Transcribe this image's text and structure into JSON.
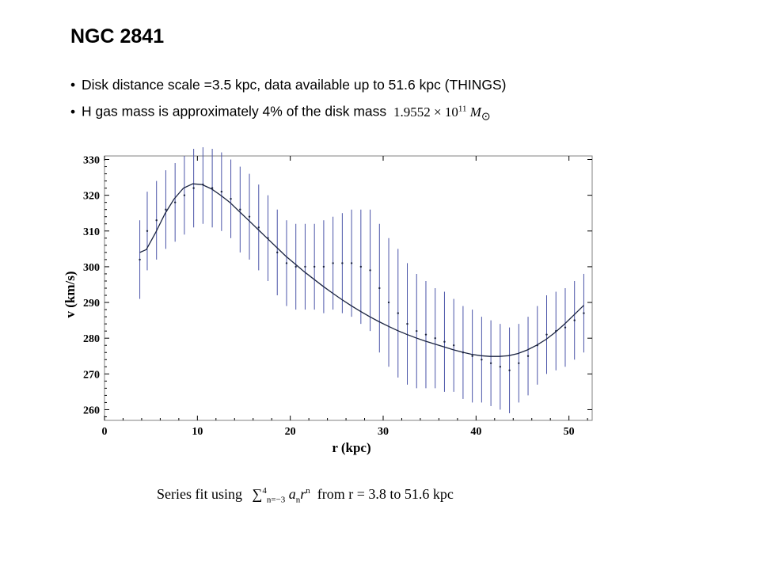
{
  "slide": {
    "title": "NGC 2841",
    "bullets": [
      {
        "text": "Disk distance scale =3.5 kpc, data available up to 51.6 kpc (THINGS)"
      },
      {
        "text": "H gas mass is approximately 4% of the disk mass",
        "math_mantissa": "1.9552 × 10",
        "math_exp": "11",
        "math_unit": "M",
        "math_unit_sub": "⊙"
      }
    ],
    "caption": {
      "text": "Series fit using",
      "sum": "∑",
      "sum_upper": "4",
      "sum_lower": "n=−3",
      "term_a": "a",
      "term_a_sub": "n",
      "term_r": "r",
      "term_r_sup": "n",
      "rest": "from  r = 3.8  to  51.6  kpc"
    }
  },
  "colors": {
    "error_bars": "#4a54a8",
    "fit_line": "#1a2340",
    "points": "#1a2340",
    "frame": "#808080"
  },
  "chart_data": {
    "type": "scatter",
    "xlabel": "r  (kpc)",
    "ylabel": "v  (km/s)",
    "xlim": [
      0,
      52.5
    ],
    "ylim": [
      257,
      331
    ],
    "xticks": [
      0,
      10,
      20,
      30,
      40,
      50
    ],
    "yticks": [
      260,
      270,
      280,
      290,
      300,
      310,
      320,
      330
    ],
    "grid": false,
    "series": [
      {
        "kind": "errorbar",
        "x_start": 3.8,
        "x_end": 51.6,
        "points": [
          [
            3.8,
            302
          ],
          [
            4.6,
            310
          ],
          [
            5.6,
            313
          ],
          [
            6.6,
            316
          ],
          [
            7.6,
            318
          ],
          [
            8.6,
            320
          ],
          [
            9.6,
            322
          ],
          [
            10.6,
            323
          ],
          [
            11.6,
            322
          ],
          [
            12.6,
            321
          ],
          [
            13.6,
            319
          ],
          [
            14.6,
            316
          ],
          [
            15.6,
            314
          ],
          [
            16.6,
            311
          ],
          [
            17.6,
            308
          ],
          [
            18.6,
            304
          ],
          [
            19.6,
            301
          ],
          [
            20.6,
            300
          ],
          [
            21.6,
            300
          ],
          [
            22.6,
            300
          ],
          [
            23.6,
            300
          ],
          [
            24.6,
            301
          ],
          [
            25.6,
            301
          ],
          [
            26.6,
            301
          ],
          [
            27.6,
            300
          ],
          [
            28.6,
            299
          ],
          [
            29.6,
            294
          ],
          [
            30.6,
            290
          ],
          [
            31.6,
            287
          ],
          [
            32.6,
            284
          ],
          [
            33.6,
            282
          ],
          [
            34.6,
            281
          ],
          [
            35.6,
            280
          ],
          [
            36.6,
            279
          ],
          [
            37.6,
            278
          ],
          [
            38.6,
            276
          ],
          [
            39.6,
            275
          ],
          [
            40.6,
            274
          ],
          [
            41.6,
            273
          ],
          [
            42.6,
            272
          ],
          [
            43.6,
            271
          ],
          [
            44.6,
            273
          ],
          [
            45.6,
            275
          ],
          [
            46.6,
            278
          ],
          [
            47.6,
            281
          ],
          [
            48.6,
            282
          ],
          [
            49.6,
            283
          ],
          [
            50.6,
            285
          ],
          [
            51.6,
            287
          ]
        ],
        "error": [
          [
            3.8,
            11
          ],
          [
            4.6,
            11
          ],
          [
            5.6,
            11
          ],
          [
            6.6,
            11
          ],
          [
            7.6,
            11
          ],
          [
            8.6,
            11
          ],
          [
            9.6,
            11
          ],
          [
            10.6,
            11
          ],
          [
            11.6,
            11
          ],
          [
            12.6,
            11
          ],
          [
            13.6,
            11
          ],
          [
            14.6,
            12
          ],
          [
            15.6,
            12
          ],
          [
            16.6,
            12
          ],
          [
            17.6,
            12
          ],
          [
            18.6,
            12
          ],
          [
            19.6,
            12
          ],
          [
            20.6,
            12
          ],
          [
            21.6,
            12
          ],
          [
            22.6,
            12
          ],
          [
            23.6,
            13
          ],
          [
            24.6,
            13
          ],
          [
            25.6,
            14
          ],
          [
            26.6,
            15
          ],
          [
            27.6,
            16
          ],
          [
            28.6,
            17
          ],
          [
            29.6,
            18
          ],
          [
            30.6,
            18
          ],
          [
            31.6,
            18
          ],
          [
            32.6,
            17
          ],
          [
            33.6,
            16
          ],
          [
            34.6,
            15
          ],
          [
            35.6,
            14
          ],
          [
            36.6,
            14
          ],
          [
            37.6,
            13
          ],
          [
            38.6,
            13
          ],
          [
            39.6,
            13
          ],
          [
            40.6,
            12
          ],
          [
            41.6,
            12
          ],
          [
            42.6,
            12
          ],
          [
            43.6,
            12
          ],
          [
            44.6,
            11
          ],
          [
            45.6,
            11
          ],
          [
            46.6,
            11
          ],
          [
            47.6,
            11
          ],
          [
            48.6,
            11
          ],
          [
            49.6,
            11
          ],
          [
            50.6,
            11
          ],
          [
            51.6,
            11
          ]
        ]
      },
      {
        "kind": "fit_line",
        "points": [
          [
            3.8,
            304
          ],
          [
            4.5,
            304.8
          ],
          [
            5.5,
            309.5
          ],
          [
            6.5,
            314.8
          ],
          [
            7.5,
            319
          ],
          [
            8.5,
            322
          ],
          [
            9.5,
            323.2
          ],
          [
            10.5,
            323
          ],
          [
            11.5,
            321.8
          ],
          [
            12.5,
            320
          ],
          [
            13.5,
            318
          ],
          [
            14.5,
            315.5
          ],
          [
            15.5,
            313
          ],
          [
            16.5,
            310.5
          ],
          [
            17.5,
            308
          ],
          [
            18.5,
            305.5
          ],
          [
            19.5,
            303
          ],
          [
            20.5,
            300.8
          ],
          [
            21.5,
            298.6
          ],
          [
            22.5,
            296.6
          ],
          [
            23.5,
            294.6
          ],
          [
            24.5,
            292.7
          ],
          [
            25.5,
            290.9
          ],
          [
            26.5,
            289.2
          ],
          [
            27.5,
            287.6
          ],
          [
            28.5,
            286.1
          ],
          [
            29.5,
            284.7
          ],
          [
            30.5,
            283.4
          ],
          [
            31.5,
            282.2
          ],
          [
            32.5,
            281.1
          ],
          [
            33.5,
            280.1
          ],
          [
            34.5,
            279.2
          ],
          [
            35.5,
            278.4
          ],
          [
            36.5,
            277.6
          ],
          [
            37.5,
            276.8
          ],
          [
            38.5,
            276.1
          ],
          [
            39.5,
            275.5
          ],
          [
            40.5,
            275.1
          ],
          [
            41.5,
            274.9
          ],
          [
            42.5,
            274.9
          ],
          [
            43.5,
            275.1
          ],
          [
            44.5,
            275.7
          ],
          [
            45.5,
            276.7
          ],
          [
            46.5,
            278
          ],
          [
            47.5,
            279.6
          ],
          [
            48.5,
            281.6
          ],
          [
            49.5,
            283.9
          ],
          [
            50.5,
            286.4
          ],
          [
            51.6,
            289.2
          ]
        ]
      }
    ]
  }
}
